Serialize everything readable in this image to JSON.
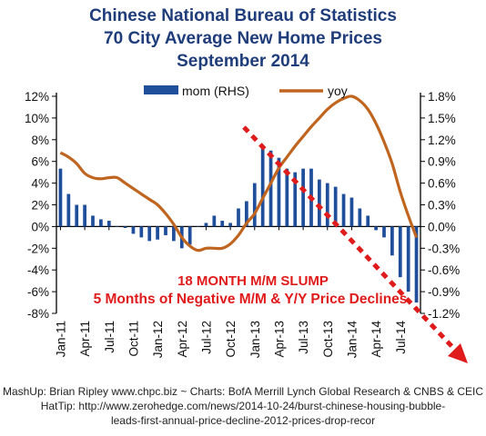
{
  "titles": {
    "line1": "Chinese National Bureau of Statistics",
    "line2": "70 City Average New Home Prices",
    "line3": "September 2014"
  },
  "annotation": {
    "line1": "18 MONTH M/M SLUMP",
    "line2": "5 Months of Negative M/M & Y/Y Price Declines",
    "color": "#e01b1b"
  },
  "credits": {
    "line1": "MashUp: Brian Ripley www.chpc.biz ~ Charts: BofA Merrill Lynch Global Research & CNBS & CEIC",
    "line2": "HatTip: http://www.zerohedge.com/news/2014-10-24/burst-chinese-housing-bubble-",
    "line3": "leads-first-annual-price-decline-2012-prices-drop-recor"
  },
  "colors": {
    "title": "#1f3d7a",
    "bars": "#1f4e9a",
    "line": "#c0651f",
    "trend_arrow": "#e01b1b"
  },
  "chart_data": {
    "type": "bar+line",
    "categories": [
      "Jan-11",
      "Feb-11",
      "Mar-11",
      "Apr-11",
      "May-11",
      "Jun-11",
      "Jul-11",
      "Aug-11",
      "Sep-11",
      "Oct-11",
      "Nov-11",
      "Dec-11",
      "Jan-12",
      "Feb-12",
      "Mar-12",
      "Apr-12",
      "May-12",
      "Jun-12",
      "Jul-12",
      "Aug-12",
      "Sep-12",
      "Oct-12",
      "Nov-12",
      "Dec-12",
      "Jan-13",
      "Feb-13",
      "Mar-13",
      "Apr-13",
      "May-13",
      "Jun-13",
      "Jul-13",
      "Aug-13",
      "Sep-13",
      "Oct-13",
      "Nov-13",
      "Dec-13",
      "Jan-14",
      "Feb-14",
      "Mar-14",
      "Apr-14",
      "May-14",
      "Jun-14",
      "Jul-14",
      "Aug-14",
      "Sep-14"
    ],
    "x_tick_labels": [
      "Jan-11",
      "Apr-11",
      "Jul-11",
      "Oct-11",
      "Jan-12",
      "Apr-12",
      "Jul-12",
      "Oct-12",
      "Jan-13",
      "Apr-13",
      "Jul-13",
      "Oct-13",
      "Jan-14",
      "Apr-14",
      "Jul-14"
    ],
    "series": [
      {
        "name": "mom (RHS)",
        "axis": "right",
        "style": "bar",
        "values": [
          0.8,
          0.45,
          0.3,
          0.3,
          0.15,
          0.1,
          0.08,
          0.0,
          -0.02,
          -0.1,
          -0.15,
          -0.2,
          -0.18,
          -0.12,
          -0.2,
          -0.3,
          -0.25,
          0.0,
          0.05,
          0.15,
          0.08,
          0.05,
          0.25,
          0.35,
          0.6,
          1.1,
          1.05,
          0.95,
          0.8,
          0.75,
          0.8,
          0.8,
          0.65,
          0.6,
          0.55,
          0.45,
          0.4,
          0.25,
          0.15,
          -0.05,
          -0.15,
          -0.4,
          -0.7,
          -0.9,
          -1.05
        ]
      },
      {
        "name": "yoy",
        "axis": "left",
        "style": "line",
        "values": [
          6.8,
          6.4,
          5.8,
          4.9,
          4.5,
          4.4,
          4.5,
          4.5,
          4.0,
          3.5,
          3.0,
          2.5,
          2.0,
          1.2,
          0.2,
          -1.0,
          -1.8,
          -2.2,
          -2.0,
          -2.0,
          -2.0,
          -1.6,
          -0.8,
          0.3,
          1.2,
          2.6,
          4.0,
          5.4,
          6.4,
          7.4,
          8.3,
          9.2,
          10.0,
          10.8,
          11.4,
          11.8,
          12.0,
          11.6,
          10.8,
          9.5,
          7.8,
          5.8,
          3.2,
          1.0,
          -1.0
        ]
      }
    ],
    "y_left": {
      "ticks": [
        "12%",
        "10%",
        "8%",
        "6%",
        "4%",
        "2%",
        "0%",
        "-2%",
        "-4%",
        "-6%",
        "-8%"
      ],
      "ylim": [
        -8,
        12
      ]
    },
    "y_right": {
      "ticks": [
        "1.8%",
        "1.5%",
        "1.2%",
        "0.9%",
        "0.6%",
        "0.3%",
        "0.0%",
        "-0.3%",
        "-0.6%",
        "-0.9%",
        "-1.2%"
      ],
      "ylim": [
        -1.2,
        1.8
      ]
    },
    "legend": "top-center",
    "grid": false
  }
}
